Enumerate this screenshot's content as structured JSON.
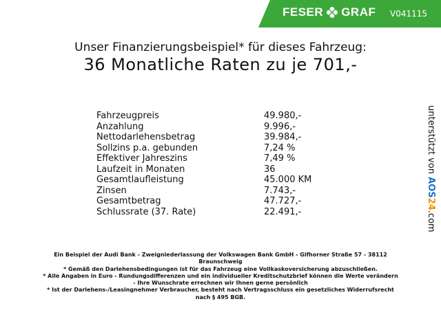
{
  "header": {
    "brand_left": "FESER",
    "brand_right": "GRAF",
    "code": "V041115"
  },
  "title": {
    "line1": "Unser Finanzierungsbeispiel* für dieses Fahrzeug:",
    "line2": "36 Monatliche Raten zu je 701,-"
  },
  "table": {
    "rows": [
      [
        "Fahrzeugpreis",
        "49.980,-"
      ],
      [
        "Anzahlung",
        "9.996,-"
      ],
      [
        "Nettodarlehensbetrag",
        "39.984,-"
      ],
      [
        "Sollzins p.a. gebunden",
        "7,24 %"
      ],
      [
        "Effektiver Jahreszins",
        "7,49 %"
      ],
      [
        "Laufzeit in Monaten",
        "36"
      ],
      [
        "Gesamtlaufleistung",
        "45.000 KM"
      ],
      [
        "Zinsen",
        "7.743,-"
      ],
      [
        "Gesamtbetrag",
        "47.727,-"
      ],
      [
        "Schlussrate (37. Rate)",
        "22.491,-"
      ]
    ]
  },
  "sidebar": {
    "prefix": "unterstützt von",
    "logo_a": "AOS",
    "logo_b": "24",
    "suffix": ".com"
  },
  "footer": {
    "lines": [
      "Ein Beispiel der Audi Bank - Zweigniederlassung der Volkswagen Bank GmbH - Gifhorner Straße 57 - 38112",
      "Braunschweig",
      "* Gemäß den Darlehensbedingungen ist für das Fahrzeug eine Vollkaskoversicherung abzuschließen.",
      "* Alle Angaben in Euro - Rundungsdifferenzen und ein individueller Kreditschutzbrief können die Werte verändern",
      "- Ihre Wunschrate errechnen wir Ihnen gerne persönlich",
      "* Ist der Darlehens-/Leasingnehmer Verbraucher, besteht nach Vertragsschluss ein gesetzliches Widerrufsrecht",
      "nach § 495 BGB."
    ]
  }
}
